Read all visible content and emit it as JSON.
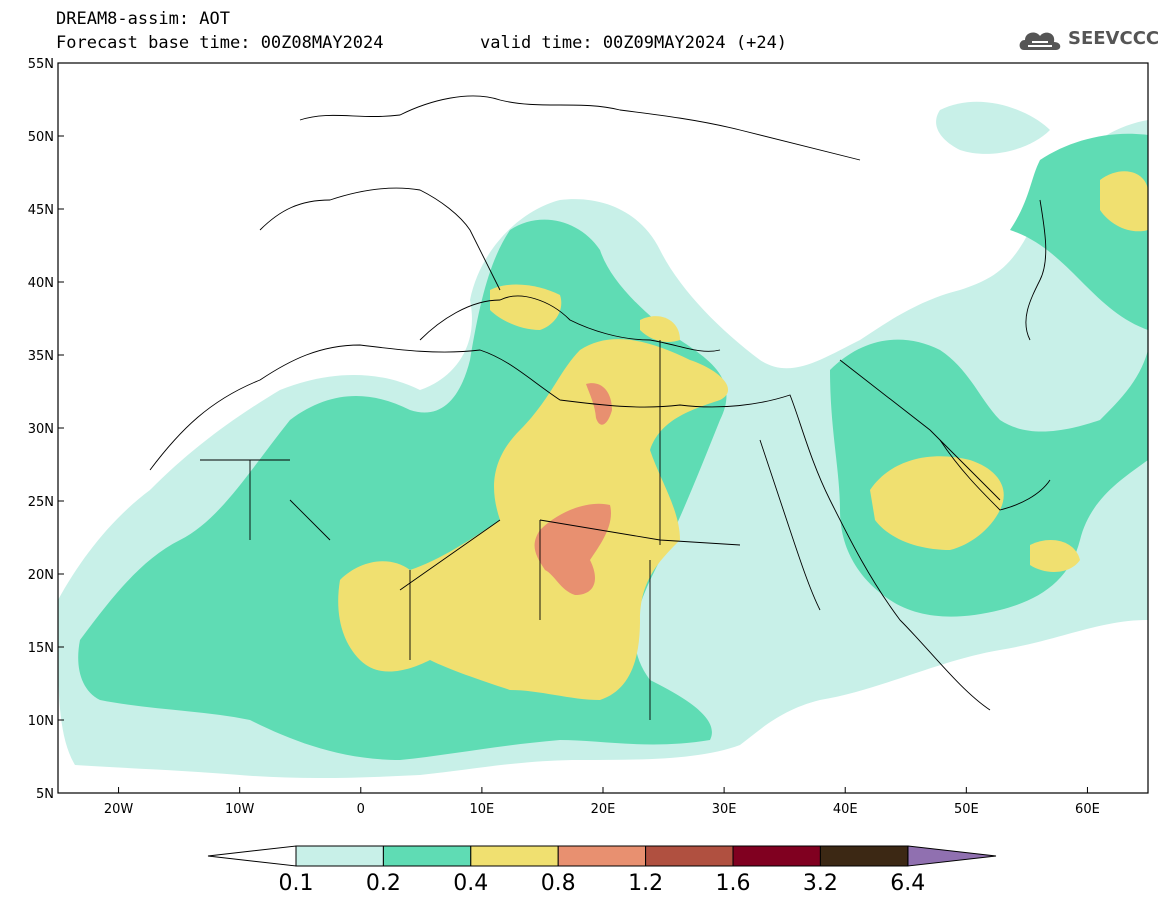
{
  "header": {
    "title": "DREAM8-assim: AOT",
    "forecast": "Forecast base time: 00Z08MAY2024",
    "valid": "valid time: 00Z09MAY2024 (+24)"
  },
  "logo": {
    "text": "SEEVCCC",
    "icon": "cloud-icon"
  },
  "map": {
    "lat_labels": [
      "55N",
      "50N",
      "45N",
      "40N",
      "35N",
      "30N",
      "25N",
      "20N",
      "15N",
      "10N",
      "5N"
    ],
    "lon_labels": [
      "20W",
      "10W",
      "0",
      "10E",
      "20E",
      "30E",
      "40E",
      "50E",
      "60E"
    ],
    "lat_range": [
      5,
      55
    ],
    "lon_range": [
      -25,
      65
    ]
  },
  "colorbar": {
    "labels": [
      "0.1",
      "0.2",
      "0.4",
      "0.8",
      "1.2",
      "1.6",
      "3.2",
      "6.4"
    ],
    "colors": [
      "#c8f0e8",
      "#5fdcb4",
      "#f0e070",
      "#e89070",
      "#b05040",
      "#800020",
      "#3c2814",
      "#9070b0"
    ]
  },
  "fields": {
    "c01": "#c8f0e8",
    "c02": "#5fdcb4",
    "c04": "#f0e070",
    "c08": "#e89070"
  }
}
